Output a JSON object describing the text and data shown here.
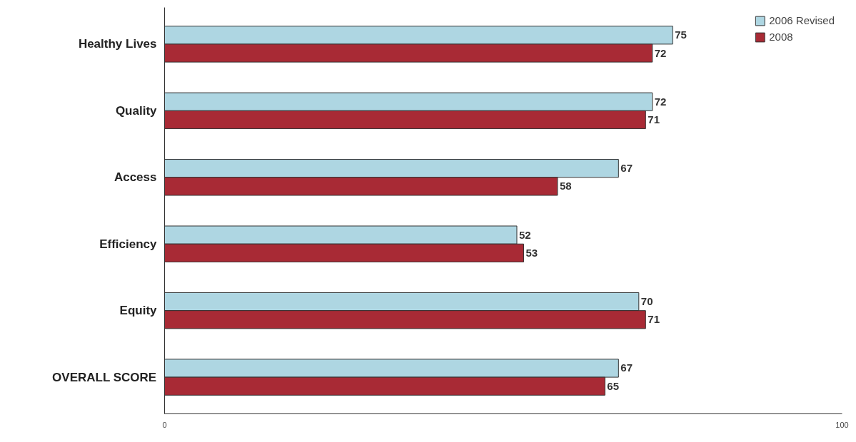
{
  "chart_data": {
    "type": "bar",
    "orientation": "horizontal",
    "categories": [
      "Healthy Lives",
      "Quality",
      "Access",
      "Efficiency",
      "Equity",
      "OVERALL SCORE"
    ],
    "series": [
      {
        "name": "2006 Revised",
        "color": "#aed6e2",
        "values": [
          75,
          72,
          67,
          52,
          70,
          67
        ]
      },
      {
        "name": "2008",
        "color": "#a82a35",
        "values": [
          72,
          71,
          58,
          53,
          71,
          65
        ]
      }
    ],
    "xlim": [
      0,
      100
    ],
    "xticks": [
      0,
      100
    ],
    "data_labels": true,
    "grid": false,
    "legend": "top right"
  }
}
